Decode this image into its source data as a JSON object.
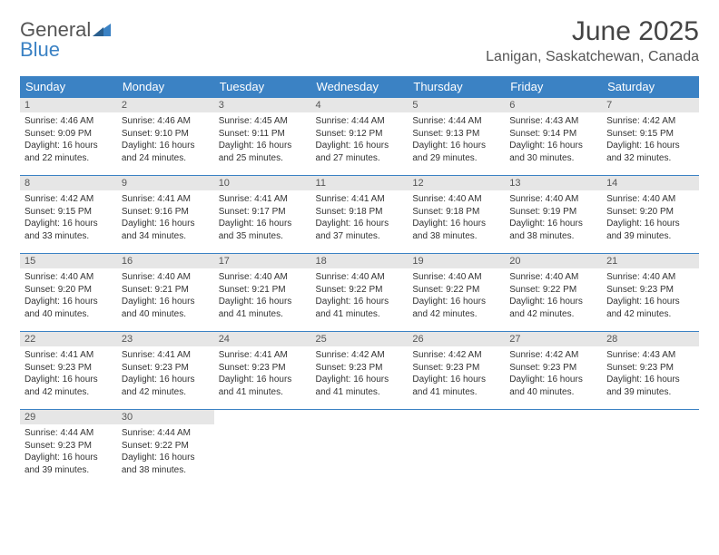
{
  "logo": {
    "word1": "General",
    "word2": "Blue"
  },
  "title": "June 2025",
  "location": "Lanigan, Saskatchewan, Canada",
  "colors": {
    "header_bg": "#3b82c4",
    "header_text": "#ffffff",
    "daynum_bg": "#e6e6e6",
    "row_divider": "#3b82c4",
    "body_text": "#333333",
    "title_text": "#444444",
    "background": "#ffffff"
  },
  "fonts": {
    "family": "Arial",
    "title_size_pt": 22,
    "location_size_pt": 12,
    "header_size_pt": 10,
    "cell_size_pt": 7.5,
    "daynum_size_pt": 8
  },
  "weekdays": [
    "Sunday",
    "Monday",
    "Tuesday",
    "Wednesday",
    "Thursday",
    "Friday",
    "Saturday"
  ],
  "labels": {
    "sunrise": "Sunrise:",
    "sunset": "Sunset:",
    "daylight_prefix": "Daylight:",
    "daylight_hours_word": "hours",
    "daylight_and": "and",
    "daylight_minutes_word": "minutes."
  },
  "days": [
    {
      "n": 1,
      "sunrise": "4:46 AM",
      "sunset": "9:09 PM",
      "dl_h": 16,
      "dl_m": 22
    },
    {
      "n": 2,
      "sunrise": "4:46 AM",
      "sunset": "9:10 PM",
      "dl_h": 16,
      "dl_m": 24
    },
    {
      "n": 3,
      "sunrise": "4:45 AM",
      "sunset": "9:11 PM",
      "dl_h": 16,
      "dl_m": 25
    },
    {
      "n": 4,
      "sunrise": "4:44 AM",
      "sunset": "9:12 PM",
      "dl_h": 16,
      "dl_m": 27
    },
    {
      "n": 5,
      "sunrise": "4:44 AM",
      "sunset": "9:13 PM",
      "dl_h": 16,
      "dl_m": 29
    },
    {
      "n": 6,
      "sunrise": "4:43 AM",
      "sunset": "9:14 PM",
      "dl_h": 16,
      "dl_m": 30
    },
    {
      "n": 7,
      "sunrise": "4:42 AM",
      "sunset": "9:15 PM",
      "dl_h": 16,
      "dl_m": 32
    },
    {
      "n": 8,
      "sunrise": "4:42 AM",
      "sunset": "9:15 PM",
      "dl_h": 16,
      "dl_m": 33
    },
    {
      "n": 9,
      "sunrise": "4:41 AM",
      "sunset": "9:16 PM",
      "dl_h": 16,
      "dl_m": 34
    },
    {
      "n": 10,
      "sunrise": "4:41 AM",
      "sunset": "9:17 PM",
      "dl_h": 16,
      "dl_m": 35
    },
    {
      "n": 11,
      "sunrise": "4:41 AM",
      "sunset": "9:18 PM",
      "dl_h": 16,
      "dl_m": 37
    },
    {
      "n": 12,
      "sunrise": "4:40 AM",
      "sunset": "9:18 PM",
      "dl_h": 16,
      "dl_m": 38
    },
    {
      "n": 13,
      "sunrise": "4:40 AM",
      "sunset": "9:19 PM",
      "dl_h": 16,
      "dl_m": 38
    },
    {
      "n": 14,
      "sunrise": "4:40 AM",
      "sunset": "9:20 PM",
      "dl_h": 16,
      "dl_m": 39
    },
    {
      "n": 15,
      "sunrise": "4:40 AM",
      "sunset": "9:20 PM",
      "dl_h": 16,
      "dl_m": 40
    },
    {
      "n": 16,
      "sunrise": "4:40 AM",
      "sunset": "9:21 PM",
      "dl_h": 16,
      "dl_m": 40
    },
    {
      "n": 17,
      "sunrise": "4:40 AM",
      "sunset": "9:21 PM",
      "dl_h": 16,
      "dl_m": 41
    },
    {
      "n": 18,
      "sunrise": "4:40 AM",
      "sunset": "9:22 PM",
      "dl_h": 16,
      "dl_m": 41
    },
    {
      "n": 19,
      "sunrise": "4:40 AM",
      "sunset": "9:22 PM",
      "dl_h": 16,
      "dl_m": 42
    },
    {
      "n": 20,
      "sunrise": "4:40 AM",
      "sunset": "9:22 PM",
      "dl_h": 16,
      "dl_m": 42
    },
    {
      "n": 21,
      "sunrise": "4:40 AM",
      "sunset": "9:23 PM",
      "dl_h": 16,
      "dl_m": 42
    },
    {
      "n": 22,
      "sunrise": "4:41 AM",
      "sunset": "9:23 PM",
      "dl_h": 16,
      "dl_m": 42
    },
    {
      "n": 23,
      "sunrise": "4:41 AM",
      "sunset": "9:23 PM",
      "dl_h": 16,
      "dl_m": 42
    },
    {
      "n": 24,
      "sunrise": "4:41 AM",
      "sunset": "9:23 PM",
      "dl_h": 16,
      "dl_m": 41
    },
    {
      "n": 25,
      "sunrise": "4:42 AM",
      "sunset": "9:23 PM",
      "dl_h": 16,
      "dl_m": 41
    },
    {
      "n": 26,
      "sunrise": "4:42 AM",
      "sunset": "9:23 PM",
      "dl_h": 16,
      "dl_m": 41
    },
    {
      "n": 27,
      "sunrise": "4:42 AM",
      "sunset": "9:23 PM",
      "dl_h": 16,
      "dl_m": 40
    },
    {
      "n": 28,
      "sunrise": "4:43 AM",
      "sunset": "9:23 PM",
      "dl_h": 16,
      "dl_m": 39
    },
    {
      "n": 29,
      "sunrise": "4:44 AM",
      "sunset": "9:23 PM",
      "dl_h": 16,
      "dl_m": 39
    },
    {
      "n": 30,
      "sunrise": "4:44 AM",
      "sunset": "9:22 PM",
      "dl_h": 16,
      "dl_m": 38
    }
  ],
  "layout": {
    "first_weekday_index": 0,
    "rows": 5,
    "cols": 7
  }
}
